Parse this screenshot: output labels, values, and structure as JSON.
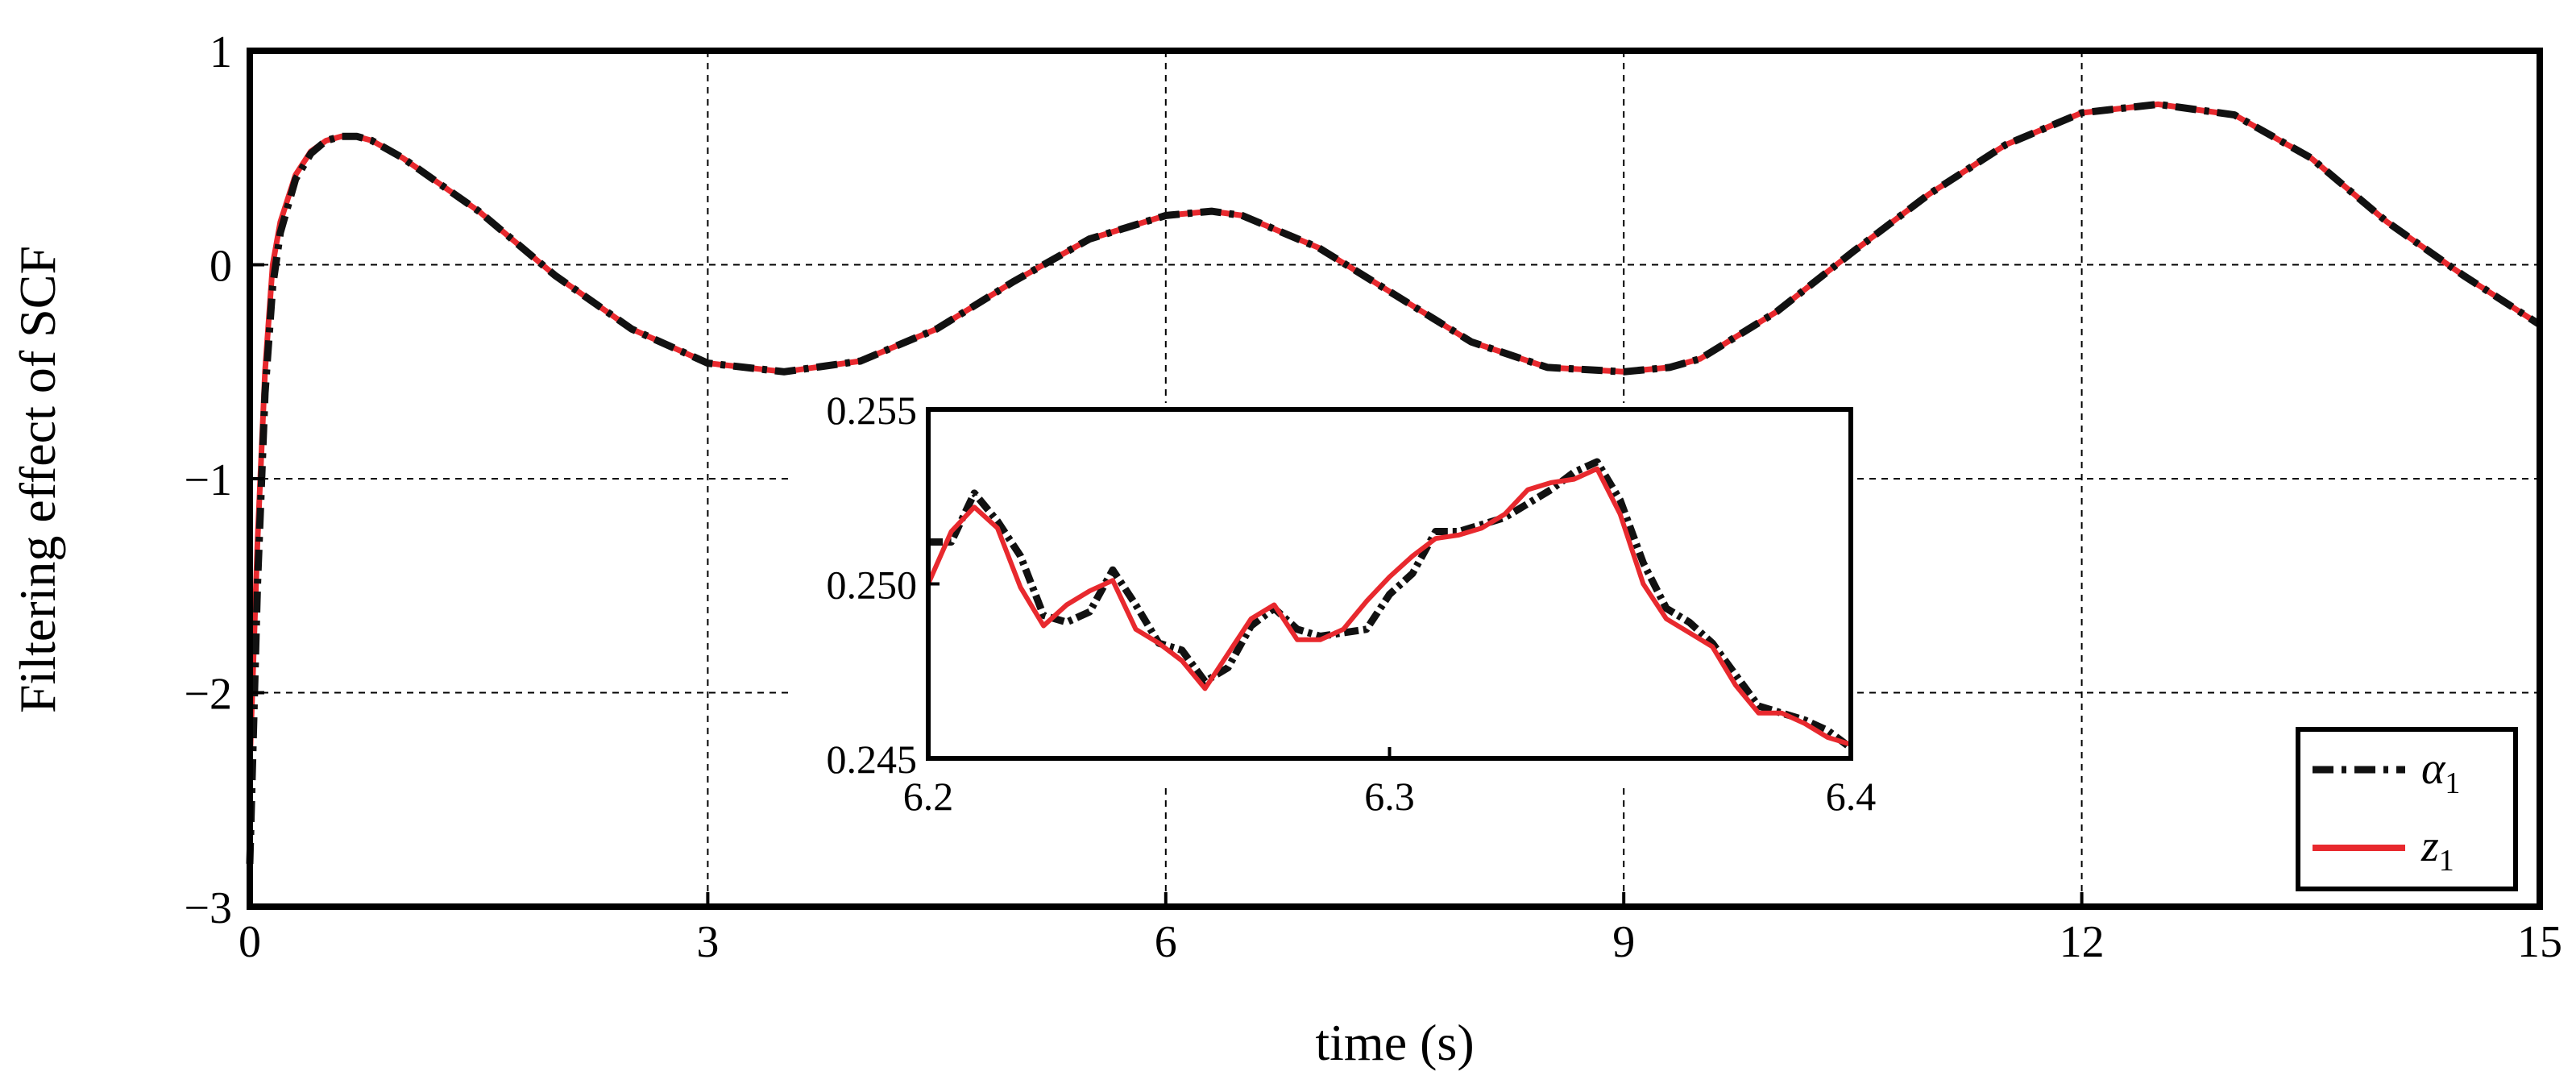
{
  "chart_data": {
    "type": "line",
    "xlabel": "time (s)",
    "ylabel": "Filtering effect of SCF",
    "xlim": [
      0,
      15
    ],
    "ylim": [
      -3,
      1
    ],
    "x_ticks": [
      "0",
      "3",
      "6",
      "9",
      "12",
      "15"
    ],
    "y_ticks": [
      "1",
      "0",
      "−1",
      "−2",
      "−3"
    ],
    "grid": true,
    "legend_position": "bottom-right",
    "legend": [
      {
        "symbol": "α",
        "subscript": "1"
      },
      {
        "symbol": "z",
        "subscript": "1"
      }
    ],
    "series": [
      {
        "key": "alpha",
        "style": "dash-dot",
        "color": "#111111",
        "x": [
          0,
          0.05,
          0.1,
          0.15,
          0.2,
          0.3,
          0.4,
          0.5,
          0.6,
          0.7,
          0.8,
          1,
          1.5,
          2,
          2.5,
          3,
          3.5,
          4,
          4.5,
          5,
          5.5,
          6,
          6.3,
          6.5,
          7,
          7.5,
          8,
          8.5,
          9,
          9.3,
          9.5,
          10,
          10.5,
          11,
          11.5,
          12,
          12.5,
          13,
          13.5,
          14,
          14.5,
          15
        ],
        "y": [
          -2.8,
          -1.5,
          -0.6,
          -0.1,
          0.15,
          0.4,
          0.52,
          0.58,
          0.6,
          0.6,
          0.58,
          0.5,
          0.25,
          -0.05,
          -0.3,
          -0.46,
          -0.5,
          -0.45,
          -0.3,
          -0.08,
          0.12,
          0.23,
          0.25,
          0.23,
          0.08,
          -0.14,
          -0.36,
          -0.48,
          -0.5,
          -0.48,
          -0.44,
          -0.22,
          0.06,
          0.33,
          0.56,
          0.71,
          0.75,
          0.7,
          0.5,
          0.2,
          -0.05,
          -0.28
        ]
      },
      {
        "key": "z",
        "style": "solid",
        "color": "#e8292e",
        "x": [
          0,
          0.002,
          0.05,
          0.1,
          0.15,
          0.2,
          0.3,
          0.4,
          0.5,
          0.6,
          0.7,
          0.8,
          1,
          1.5,
          2,
          2.5,
          3,
          3.5,
          4,
          4.5,
          5,
          5.5,
          6,
          6.3,
          6.5,
          7,
          7.5,
          8,
          8.5,
          9,
          9.3,
          9.5,
          10,
          10.5,
          11,
          11.5,
          12,
          12.5,
          13,
          13.5,
          14,
          14.5,
          15
        ],
        "y": [
          0,
          -2.3,
          -1.3,
          -0.5,
          0,
          0.2,
          0.42,
          0.53,
          0.58,
          0.6,
          0.6,
          0.58,
          0.5,
          0.25,
          -0.05,
          -0.3,
          -0.46,
          -0.5,
          -0.45,
          -0.3,
          -0.08,
          0.12,
          0.23,
          0.25,
          0.23,
          0.08,
          -0.14,
          -0.36,
          -0.48,
          -0.5,
          -0.48,
          -0.44,
          -0.22,
          0.06,
          0.33,
          0.56,
          0.71,
          0.75,
          0.7,
          0.5,
          0.2,
          -0.05,
          -0.28
        ]
      }
    ],
    "inset": {
      "xlim": [
        6.2,
        6.4
      ],
      "ylim": [
        0.245,
        0.255
      ],
      "x_ticks": [
        "6.2",
        "6.3",
        "6.4"
      ],
      "y_ticks": [
        "0.255",
        "0.250",
        "0.245"
      ],
      "series": [
        {
          "key": "alpha",
          "style": "dash-dot",
          "color": "#111111",
          "x": [
            6.2,
            6.205,
            6.21,
            6.215,
            6.22,
            6.225,
            6.23,
            6.235,
            6.24,
            6.245,
            6.25,
            6.255,
            6.26,
            6.265,
            6.27,
            6.275,
            6.28,
            6.285,
            6.29,
            6.295,
            6.3,
            6.305,
            6.31,
            6.315,
            6.32,
            6.325,
            6.33,
            6.335,
            6.34,
            6.345,
            6.35,
            6.355,
            6.36,
            6.365,
            6.37,
            6.375,
            6.38,
            6.385,
            6.39,
            6.395,
            6.4
          ],
          "y": [
            0.2512,
            0.2512,
            0.2526,
            0.2518,
            0.2508,
            0.2491,
            0.2489,
            0.2492,
            0.2504,
            0.2494,
            0.2483,
            0.2481,
            0.2472,
            0.2476,
            0.2488,
            0.2493,
            0.2487,
            0.2485,
            0.2486,
            0.2487,
            0.2497,
            0.2503,
            0.2515,
            0.2515,
            0.2517,
            0.2519,
            0.2523,
            0.2527,
            0.2532,
            0.2535,
            0.2524,
            0.2506,
            0.2493,
            0.2489,
            0.2483,
            0.2474,
            0.2465,
            0.2463,
            0.2461,
            0.2458,
            0.2453
          ]
        },
        {
          "key": "z",
          "style": "solid",
          "color": "#e8292e",
          "x": [
            6.2,
            6.205,
            6.21,
            6.215,
            6.22,
            6.225,
            6.23,
            6.235,
            6.24,
            6.245,
            6.25,
            6.255,
            6.26,
            6.265,
            6.27,
            6.275,
            6.28,
            6.285,
            6.29,
            6.295,
            6.3,
            6.305,
            6.31,
            6.315,
            6.32,
            6.325,
            6.33,
            6.335,
            6.34,
            6.345,
            6.35,
            6.355,
            6.36,
            6.365,
            6.37,
            6.375,
            6.38,
            6.385,
            6.39,
            6.395,
            6.4
          ],
          "y": [
            0.25,
            0.2515,
            0.2522,
            0.2516,
            0.2499,
            0.2488,
            0.2494,
            0.2498,
            0.2501,
            0.2487,
            0.2483,
            0.2478,
            0.247,
            0.248,
            0.249,
            0.2494,
            0.2484,
            0.2484,
            0.2487,
            0.2495,
            0.2502,
            0.2508,
            0.2513,
            0.2514,
            0.2516,
            0.252,
            0.2527,
            0.2529,
            0.253,
            0.2533,
            0.252,
            0.25,
            0.249,
            0.2486,
            0.2482,
            0.2471,
            0.2463,
            0.2463,
            0.246,
            0.2456,
            0.2454
          ]
        }
      ]
    }
  }
}
